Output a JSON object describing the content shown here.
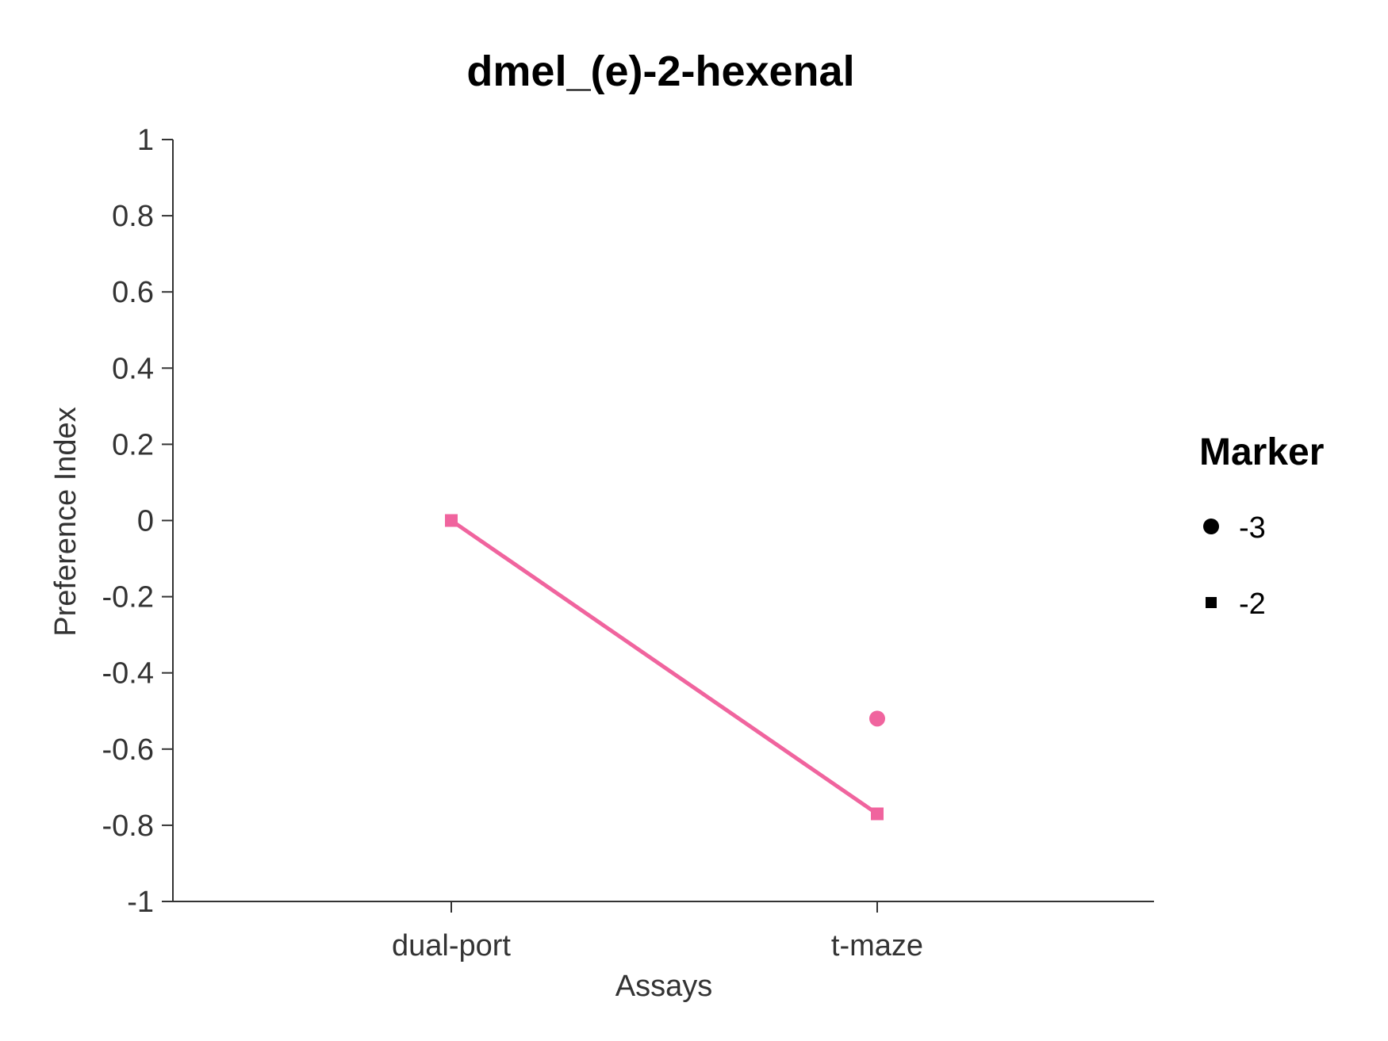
{
  "chart_data": {
    "type": "line",
    "title": "dmel_(e)-2-hexenal",
    "xlabel": "Assays",
    "ylabel": "Preference Index",
    "categories": [
      "dual-port",
      "t-maze"
    ],
    "ylim": [
      -1,
      1
    ],
    "yticks": [
      "1",
      "0.8",
      "0.6",
      "0.4",
      "0.2",
      "0",
      "-0.2",
      "-0.4",
      "-0.6",
      "-0.8",
      "-1"
    ],
    "color": "#F0649E",
    "grid": false,
    "series": [
      {
        "name": "-2",
        "marker": "square",
        "connected": true,
        "values": [
          0,
          -0.77
        ]
      },
      {
        "name": "-3",
        "marker": "circle",
        "connected": false,
        "values": [
          null,
          -0.52
        ]
      }
    ],
    "legend": {
      "title": "Marker",
      "position": "right",
      "entries": [
        {
          "label": "-3",
          "marker": "circle"
        },
        {
          "label": "-2",
          "marker": "square"
        }
      ]
    }
  }
}
